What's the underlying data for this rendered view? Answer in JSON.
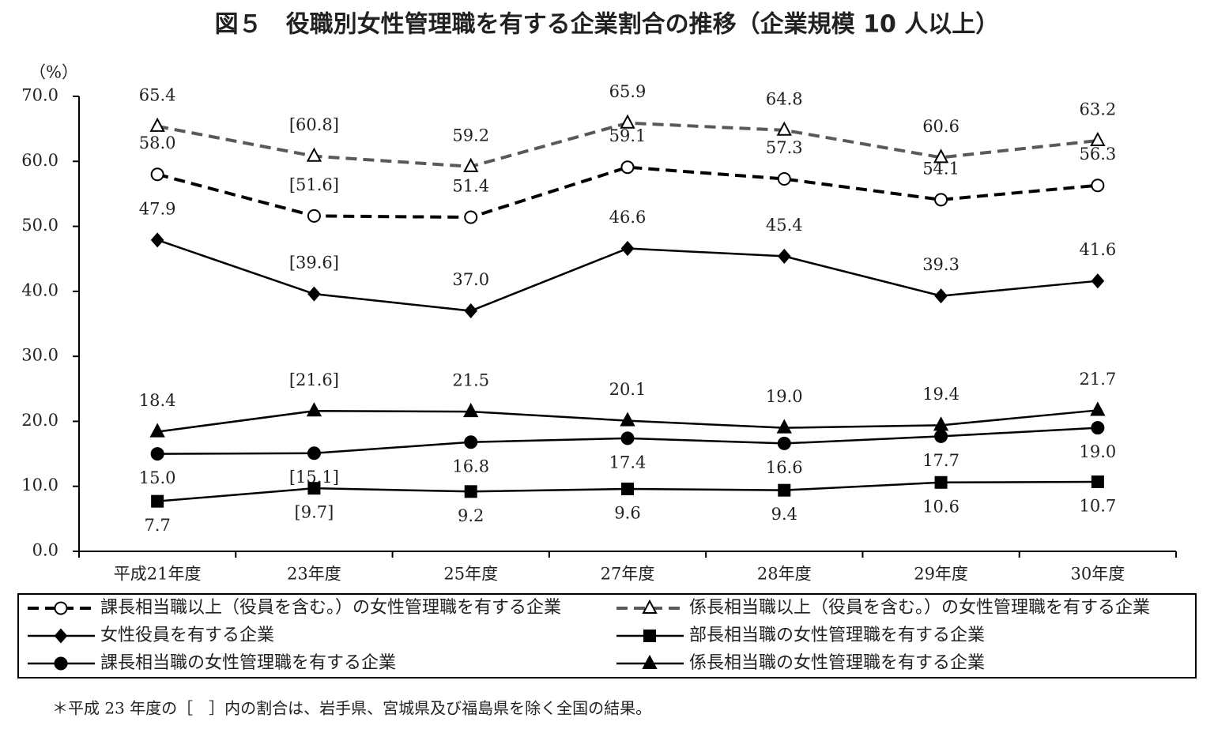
{
  "chart_data": {
    "type": "line",
    "title": "図５　役職別女性管理職を有する企業割合の推移（企業規模 10 人以上）",
    "y_label": "（%）",
    "footnote": "＊平成 23 年度の［　］内の割合は、岩手県、宮城県及び福島県を除く全国の結果。",
    "categories": [
      "平成21年度",
      "23年度",
      "25年度",
      "27年度",
      "28年度",
      "29年度",
      "30年度"
    ],
    "ylim": [
      0,
      70
    ],
    "yticks": [
      {
        "value": 0,
        "label": "0.0"
      },
      {
        "value": 10,
        "label": "10.0"
      },
      {
        "value": 20,
        "label": "20.0"
      },
      {
        "value": 30,
        "label": "30.0"
      },
      {
        "value": 40,
        "label": "40.0"
      },
      {
        "value": 50,
        "label": "50.0"
      },
      {
        "value": 60,
        "label": "60.0"
      },
      {
        "value": 70,
        "label": "70.0"
      }
    ],
    "series": [
      {
        "name": "課長相当職以上（役員を含む。）の女性管理職を有する企業",
        "color": "#000000",
        "dashed": true,
        "marker": "circle-open",
        "label_side": "above",
        "values": [
          58.0,
          51.6,
          51.4,
          59.1,
          57.3,
          54.1,
          56.3
        ],
        "value_labels": [
          "58.0",
          "[51.6]",
          "51.4",
          "59.1",
          "57.3",
          "54.1",
          "56.3"
        ]
      },
      {
        "name": "係長相当職以上（役員を含む。）の女性管理職を有する企業",
        "color": "#595959",
        "dashed": true,
        "marker": "triangle-open",
        "label_side": "above",
        "values": [
          65.4,
          60.8,
          59.2,
          65.9,
          64.8,
          60.6,
          63.2
        ],
        "value_labels": [
          "65.4",
          "[60.8]",
          "59.2",
          "65.9",
          "64.8",
          "60.6",
          "63.2"
        ]
      },
      {
        "name": "女性役員を有する企業",
        "color": "#000000",
        "dashed": false,
        "marker": "diamond",
        "label_side": "above",
        "values": [
          47.9,
          39.6,
          37.0,
          46.6,
          45.4,
          39.3,
          41.6
        ],
        "value_labels": [
          "47.9",
          "[39.6]",
          "37.0",
          "46.6",
          "45.4",
          "39.3",
          "41.6"
        ]
      },
      {
        "name": "部長相当職の女性管理職を有する企業",
        "color": "#000000",
        "dashed": false,
        "marker": "square",
        "label_side": "below",
        "values": [
          7.7,
          9.7,
          9.2,
          9.6,
          9.4,
          10.6,
          10.7
        ],
        "value_labels": [
          "7.7",
          "[9.7]",
          "9.2",
          "9.6",
          "9.4",
          "10.6",
          "10.7"
        ]
      },
      {
        "name": "課長相当職の女性管理職を有する企業",
        "color": "#000000",
        "dashed": false,
        "marker": "circle",
        "label_side": "below",
        "values": [
          15.0,
          15.1,
          16.8,
          17.4,
          16.6,
          17.7,
          19.0
        ],
        "value_labels": [
          "15.0",
          "[15.1]",
          "16.8",
          "17.4",
          "16.6",
          "17.7",
          "19.0"
        ]
      },
      {
        "name": "係長相当職の女性管理職を有する企業",
        "color": "#000000",
        "dashed": false,
        "marker": "triangle",
        "label_side": "above",
        "values": [
          18.4,
          21.6,
          21.5,
          20.1,
          19.0,
          19.4,
          21.7
        ],
        "value_labels": [
          "18.4",
          "[21.6]",
          "21.5",
          "20.1",
          "19.0",
          "19.4",
          "21.7"
        ]
      }
    ]
  }
}
